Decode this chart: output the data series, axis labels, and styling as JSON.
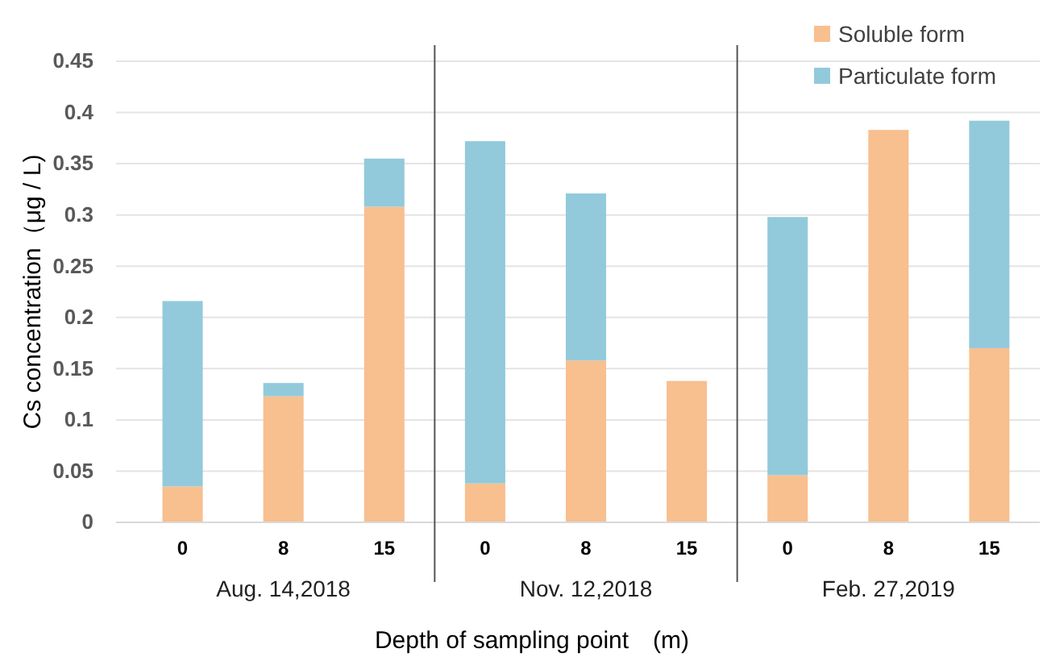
{
  "chart_data": {
    "type": "bar",
    "stacked": true,
    "categories": [
      "0",
      "8",
      "15",
      "0",
      "8",
      "15",
      "0",
      "8",
      "15"
    ],
    "series": [
      {
        "name": "Soluble form",
        "color": "#f8bf8f",
        "values": [
          0.035,
          0.123,
          0.308,
          0.038,
          0.158,
          0.138,
          0.046,
          0.383,
          0.17
        ]
      },
      {
        "name": "Particulate form",
        "color": "#92cadb",
        "values": [
          0.181,
          0.013,
          0.047,
          0.334,
          0.163,
          0,
          0.252,
          0,
          0.222
        ]
      }
    ],
    "ylim": [
      0,
      0.45
    ],
    "yticks": [
      0,
      0.05,
      0.1,
      0.15,
      0.2,
      0.25,
      0.3,
      0.35,
      0.4,
      0.45
    ],
    "ylabel": "Cs concentration（μg / L)",
    "xlabel": "Depth of sampling point　(m)",
    "annotations": [
      "Aug. 14,2018",
      "Nov. 12,2018",
      "Feb. 27,2019"
    ],
    "grid": "y",
    "legend": "top right"
  }
}
